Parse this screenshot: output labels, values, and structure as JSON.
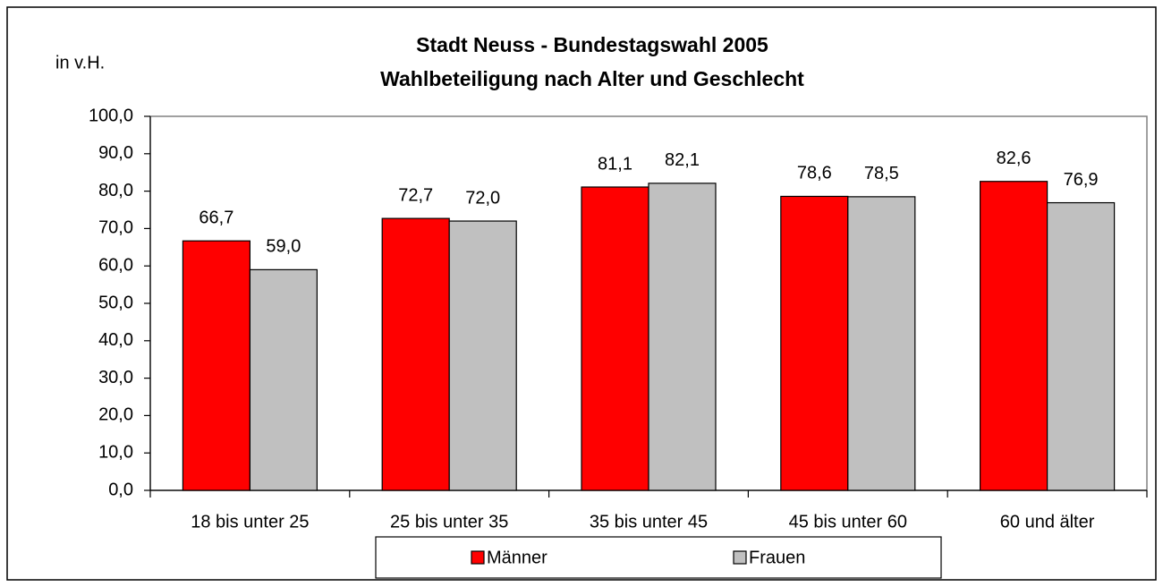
{
  "chart_data": {
    "type": "bar",
    "title": "Stadt Neuss - Bundestagswahl 2005",
    "subtitle": "Wahlbeteiligung nach Alter und Geschlecht",
    "ylabel": "in v.H.",
    "categories": [
      "18 bis unter 25",
      "25 bis unter 35",
      "35 bis unter 45",
      "45 bis unter 60",
      "60 und älter"
    ],
    "series": [
      {
        "name": "Männer",
        "color": "#ff0000",
        "values": [
          66.7,
          72.7,
          81.1,
          78.6,
          82.6
        ],
        "value_labels": [
          "66,7",
          "72,7",
          "81,1",
          "78,6",
          "82,6"
        ]
      },
      {
        "name": "Frauen",
        "color": "#c0c0c0",
        "values": [
          59.0,
          72.0,
          82.1,
          78.5,
          76.9
        ],
        "value_labels": [
          "59,0",
          "72,0",
          "82,1",
          "78,5",
          "76,9"
        ]
      }
    ],
    "ylim": [
      0,
      100
    ],
    "yticks": [
      {
        "value": 0,
        "label": "0,0"
      },
      {
        "value": 10,
        "label": "10,0"
      },
      {
        "value": 20,
        "label": "20,0"
      },
      {
        "value": 30,
        "label": "30,0"
      },
      {
        "value": 40,
        "label": "40,0"
      },
      {
        "value": 50,
        "label": "50,0"
      },
      {
        "value": 60,
        "label": "60,0"
      },
      {
        "value": 70,
        "label": "70,0"
      },
      {
        "value": 80,
        "label": "80,0"
      },
      {
        "value": 90,
        "label": "90,0"
      },
      {
        "value": 100,
        "label": "100,0"
      }
    ],
    "grid": false,
    "legend": "bottom"
  }
}
